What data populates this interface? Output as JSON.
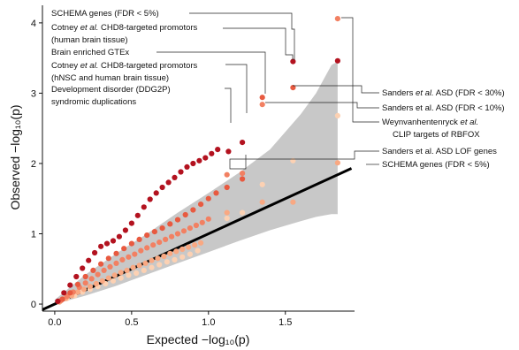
{
  "chart_data": {
    "type": "scatter",
    "xlabel": "Expected −log₁₀(p)",
    "ylabel": "Observed −log₁₀(p)",
    "xlim": [
      -0.08,
      1.95
    ],
    "ylim": [
      -0.1,
      4.25
    ],
    "xticks": [
      {
        "value": 0,
        "label": "0.0"
      },
      {
        "value": 0.5,
        "label": "0.5"
      },
      {
        "value": 1,
        "label": "1.0"
      },
      {
        "value": 1.5,
        "label": "1.5"
      }
    ],
    "yticks": [
      {
        "value": 0,
        "label": "0"
      },
      {
        "value": 1,
        "label": "1"
      },
      {
        "value": 2,
        "label": "2"
      },
      {
        "value": 3,
        "label": "3"
      },
      {
        "value": 4,
        "label": "4"
      }
    ],
    "grid": false,
    "legend": "none",
    "reference_line": {
      "x": [
        -0.08,
        1.93
      ],
      "y": [
        -0.08,
        1.93
      ],
      "color": "#000000"
    },
    "confidence_band": {
      "color": "#c8c8c8",
      "x": [
        0,
        0.2,
        0.4,
        0.6,
        0.8,
        1.0,
        1.2,
        1.4,
        1.6,
        1.7,
        1.8,
        1.84
      ],
      "upper": [
        0.06,
        0.42,
        0.72,
        1.0,
        1.3,
        1.58,
        1.87,
        2.2,
        2.7,
        3.0,
        3.4,
        3.45
      ],
      "lower": [
        0,
        0.12,
        0.26,
        0.42,
        0.58,
        0.74,
        0.9,
        1.05,
        1.18,
        1.24,
        1.28,
        1.28
      ]
    },
    "series": [
      {
        "color": "#b3121f",
        "x": [
          0.02,
          0.06,
          0.1,
          0.14,
          0.18,
          0.22,
          0.26,
          0.3,
          0.34,
          0.38,
          0.42,
          0.46,
          0.5,
          0.54,
          0.58,
          0.62,
          0.66,
          0.7,
          0.74,
          0.78,
          0.82,
          0.86,
          0.9,
          0.94,
          0.98,
          1.02,
          1.06,
          1.13,
          1.22,
          1.55,
          1.84
        ],
        "y": [
          0.04,
          0.16,
          0.27,
          0.39,
          0.51,
          0.62,
          0.73,
          0.82,
          0.86,
          0.9,
          0.96,
          1.05,
          1.15,
          1.26,
          1.38,
          1.49,
          1.58,
          1.66,
          1.73,
          1.8,
          1.88,
          1.95,
          2.0,
          2.04,
          2.08,
          2.14,
          2.2,
          2.17,
          2.3,
          3.45,
          3.46
        ]
      },
      {
        "color": "#e85a40",
        "x": [
          0.05,
          0.1,
          0.15,
          0.2,
          0.25,
          0.3,
          0.35,
          0.4,
          0.45,
          0.5,
          0.55,
          0.6,
          0.65,
          0.7,
          0.75,
          0.8,
          0.85,
          0.9,
          0.95,
          1.0,
          1.05,
          1.12,
          1.22,
          1.35,
          1.55
        ],
        "y": [
          0.07,
          0.16,
          0.28,
          0.39,
          0.48,
          0.57,
          0.65,
          0.72,
          0.79,
          0.86,
          0.92,
          0.98,
          1.03,
          1.08,
          1.14,
          1.2,
          1.27,
          1.34,
          1.42,
          1.5,
          1.58,
          1.66,
          1.78,
          2.94,
          3.08
        ]
      },
      {
        "color": "#f28062",
        "x": [
          0.04,
          0.08,
          0.12,
          0.16,
          0.2,
          0.24,
          0.28,
          0.32,
          0.36,
          0.4,
          0.44,
          0.48,
          0.52,
          0.56,
          0.6,
          0.64,
          0.68,
          0.72,
          0.76,
          0.8,
          0.84,
          0.88,
          0.92,
          0.96,
          1.0,
          1.12,
          1.22,
          1.35,
          1.84
        ],
        "y": [
          0.05,
          0.11,
          0.17,
          0.24,
          0.3,
          0.36,
          0.42,
          0.48,
          0.53,
          0.58,
          0.63,
          0.67,
          0.71,
          0.76,
          0.8,
          0.84,
          0.88,
          0.92,
          0.96,
          1.0,
          1.04,
          1.08,
          1.12,
          1.16,
          1.21,
          1.84,
          1.86,
          2.84,
          4.06
        ]
      },
      {
        "color": "#f9a882",
        "x": [
          0.03,
          0.07,
          0.11,
          0.15,
          0.19,
          0.23,
          0.27,
          0.31,
          0.35,
          0.39,
          0.43,
          0.47,
          0.51,
          0.55,
          0.59,
          0.63,
          0.67,
          0.71,
          0.75,
          0.79,
          0.83,
          0.87,
          0.91,
          0.95,
          1.12,
          1.35,
          1.55,
          1.84
        ],
        "y": [
          0.03,
          0.08,
          0.12,
          0.17,
          0.21,
          0.25,
          0.29,
          0.33,
          0.37,
          0.41,
          0.45,
          0.48,
          0.52,
          0.55,
          0.58,
          0.62,
          0.65,
          0.68,
          0.72,
          0.75,
          0.78,
          0.81,
          0.84,
          0.87,
          1.3,
          1.45,
          1.45,
          2.01
        ]
      },
      {
        "color": "#fcd1b3",
        "x": [
          0.03,
          0.08,
          0.13,
          0.18,
          0.23,
          0.28,
          0.33,
          0.38,
          0.43,
          0.48,
          0.53,
          0.58,
          0.63,
          0.68,
          0.73,
          0.78,
          0.83,
          0.88,
          0.93,
          1.12,
          1.22,
          1.35,
          1.55,
          1.84
        ],
        "y": [
          0.03,
          0.08,
          0.12,
          0.17,
          0.21,
          0.25,
          0.29,
          0.33,
          0.37,
          0.41,
          0.44,
          0.48,
          0.52,
          0.56,
          0.6,
          0.63,
          0.67,
          0.71,
          0.76,
          1.22,
          1.3,
          1.7,
          2.04,
          2.68
        ]
      }
    ]
  },
  "annotations": {
    "left": [
      {
        "lines": [
          {
            "text": "SCHEMA genes (FDR < 5%)"
          }
        ]
      },
      {
        "lines": [
          {
            "text": "Cotney et al. CHD8-targeted promotors",
            "italic": "et al."
          },
          {
            "text": "(human brain tissue)"
          }
        ]
      },
      {
        "lines": [
          {
            "text": "Brain enriched GTEx"
          }
        ]
      },
      {
        "lines": [
          {
            "text": "Cotney et al. CHD8-targeted promotors",
            "italic": "et al."
          },
          {
            "text": "(hNSC and human brain tissue)"
          }
        ]
      },
      {
        "lines": [
          {
            "text": "Development disorder (DDG2P)"
          },
          {
            "text": "syndromic duplications"
          }
        ]
      }
    ],
    "right": [
      {
        "lines": [
          {
            "text": "Sanders et al. ASD (FDR < 30%)",
            "italic": "et al."
          }
        ]
      },
      {
        "lines": [
          {
            "text": "Sanders et al. ASD (FDR < 10%)"
          }
        ]
      },
      {
        "lines": [
          {
            "text": "Weynvanhentenryck et al.",
            "italic": "et al."
          },
          {
            "text": "CLIP targets of RBFOX"
          }
        ]
      },
      {
        "lines": [
          {
            "text": "Sanders et al. ASD LOF genes"
          }
        ]
      },
      {
        "lines": [
          {
            "text": "SCHEMA genes (FDR < 5%)"
          }
        ]
      }
    ]
  }
}
